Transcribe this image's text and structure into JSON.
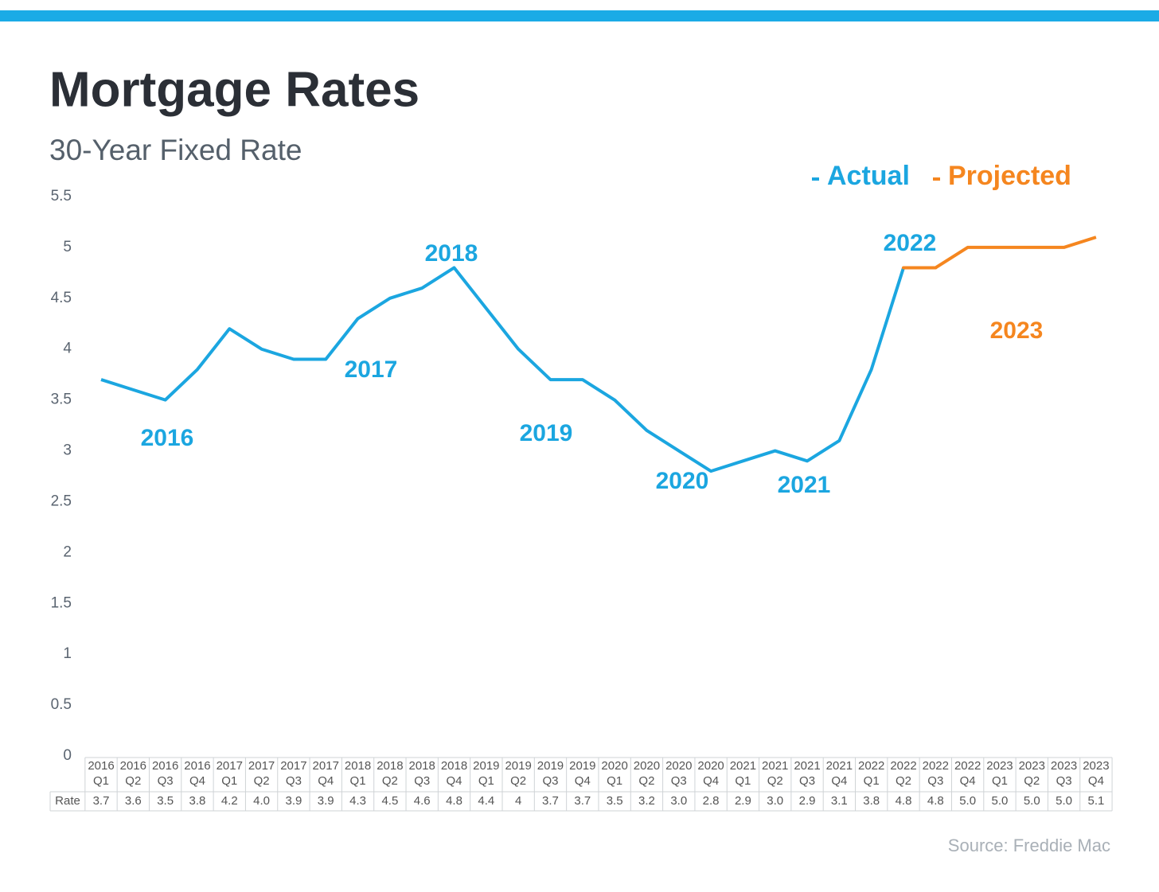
{
  "chart_data": {
    "type": "line",
    "title": "Mortgage Rates",
    "subtitle": "30-Year Fixed Rate",
    "categories": [
      [
        "2016",
        "Q1"
      ],
      [
        "2016",
        "Q2"
      ],
      [
        "2016",
        "Q3"
      ],
      [
        "2016",
        "Q4"
      ],
      [
        "2017",
        "Q1"
      ],
      [
        "2017",
        "Q2"
      ],
      [
        "2017",
        "Q3"
      ],
      [
        "2017",
        "Q4"
      ],
      [
        "2018",
        "Q1"
      ],
      [
        "2018",
        "Q2"
      ],
      [
        "2018",
        "Q3"
      ],
      [
        "2018",
        "Q4"
      ],
      [
        "2019",
        "Q1"
      ],
      [
        "2019",
        "Q2"
      ],
      [
        "2019",
        "Q3"
      ],
      [
        "2019",
        "Q4"
      ],
      [
        "2020",
        "Q1"
      ],
      [
        "2020",
        "Q2"
      ],
      [
        "2020",
        "Q3"
      ],
      [
        "2020",
        "Q4"
      ],
      [
        "2021",
        "Q1"
      ],
      [
        "2021",
        "Q2"
      ],
      [
        "2021",
        "Q3"
      ],
      [
        "2021",
        "Q4"
      ],
      [
        "2022",
        "Q1"
      ],
      [
        "2022",
        "Q2"
      ],
      [
        "2022",
        "Q3"
      ],
      [
        "2022",
        "Q4"
      ],
      [
        "2023",
        "Q1"
      ],
      [
        "2023",
        "Q2"
      ],
      [
        "2023",
        "Q3"
      ],
      [
        "2023",
        "Q4"
      ]
    ],
    "series": [
      {
        "name": "Actual",
        "color": "#1ba6e0",
        "values": [
          3.7,
          3.6,
          3.5,
          3.8,
          4.2,
          4.0,
          3.9,
          3.9,
          4.3,
          4.5,
          4.6,
          4.8,
          4.4,
          4,
          3.7,
          3.7,
          3.5,
          3.2,
          3.0,
          2.8,
          2.9,
          3.0,
          2.9,
          3.1,
          3.8,
          4.8,
          null,
          null,
          null,
          null,
          null,
          null
        ],
        "value_labels": [
          "3.7",
          "3.6",
          "3.5",
          "3.8",
          "4.2",
          "4.0",
          "3.9",
          "3.9",
          "4.3",
          "4.5",
          "4.6",
          "4.8",
          "4.4",
          "4",
          "3.7",
          "3.7",
          "3.5",
          "3.2",
          "3.0",
          "2.8",
          "2.9",
          "3.0",
          "2.9",
          "3.1",
          "3.8",
          "4.8",
          null,
          null,
          null,
          null,
          null,
          null
        ]
      },
      {
        "name": "Projected",
        "color": "#f5861f",
        "values": [
          null,
          null,
          null,
          null,
          null,
          null,
          null,
          null,
          null,
          null,
          null,
          null,
          null,
          null,
          null,
          null,
          null,
          null,
          null,
          null,
          null,
          null,
          null,
          null,
          null,
          null,
          4.8,
          5.0,
          5.0,
          5.0,
          5.0,
          5.1
        ],
        "value_labels": [
          null,
          null,
          null,
          null,
          null,
          null,
          null,
          null,
          null,
          null,
          null,
          null,
          null,
          null,
          null,
          null,
          null,
          null,
          null,
          null,
          null,
          null,
          null,
          null,
          null,
          null,
          "4.8",
          "5.0",
          "5.0",
          "5.0",
          "5.0",
          "5.1"
        ]
      }
    ],
    "table_row_label": "Rate",
    "ylim": [
      0,
      5.5
    ],
    "yticks": [
      0,
      0.5,
      1,
      1.5,
      2,
      2.5,
      3,
      3.5,
      4,
      4.5,
      5,
      5.5
    ],
    "grid": false,
    "annotations": [
      {
        "text": "2016",
        "color": "#1ba6e0"
      },
      {
        "text": "2017",
        "color": "#1ba6e0"
      },
      {
        "text": "2018",
        "color": "#1ba6e0"
      },
      {
        "text": "2019",
        "color": "#1ba6e0"
      },
      {
        "text": "2020",
        "color": "#1ba6e0"
      },
      {
        "text": "2021",
        "color": "#1ba6e0"
      },
      {
        "text": "2022",
        "color": "#1ba6e0"
      },
      {
        "text": "2023",
        "color": "#f5861f"
      }
    ],
    "source": "Source:  Freddie  Mac"
  }
}
